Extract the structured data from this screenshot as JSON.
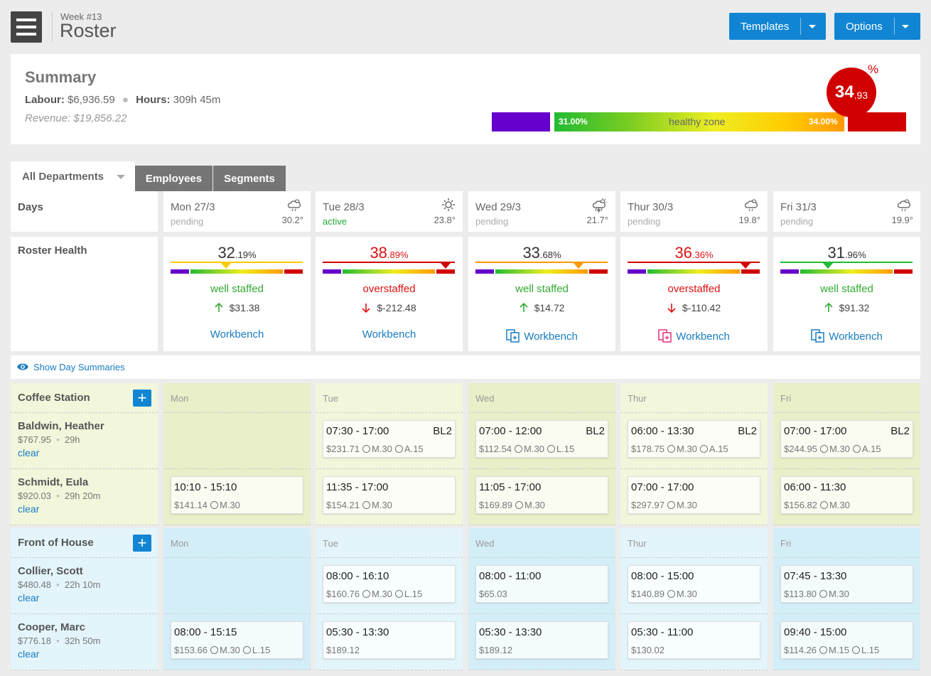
{
  "header": {
    "week": "Week #13",
    "title": "Roster",
    "templates_label": "Templates",
    "options_label": "Options"
  },
  "summary": {
    "title": "Summary",
    "labour_label": "Labour:",
    "labour_value": "$6,936.59",
    "hours_label": "Hours:",
    "hours_value": "309h 45m",
    "revenue": "Revenue: $19,856.22",
    "gauge_low": "31.00%",
    "gauge_zone": "healthy zone",
    "gauge_high": "34.00%",
    "pct_int": "34",
    "pct_dec": ".93",
    "pct_symbol": "%"
  },
  "tabs": {
    "department": "All Departments",
    "employees": "Employees",
    "segments": "Segments"
  },
  "days_label": "Days",
  "health_label": "Roster Health",
  "days": [
    {
      "name": "Mon 27/3",
      "status": "pending",
      "temp": "30.2°",
      "weather": "partly-cloudy-icon",
      "int": "32",
      "dec": ".19",
      "pct": "%",
      "state": "well staffed",
      "amount": "$31.38",
      "dir": "up",
      "color": "#ffcc00",
      "ptr_pos": 0.42,
      "workbench": "Workbench",
      "wb_icon": ""
    },
    {
      "name": "Tue 28/3",
      "status": "active",
      "temp": "23.8°",
      "weather": "sun-icon",
      "int": "38",
      "dec": ".89",
      "pct": "%",
      "state": "overstaffed",
      "amount": "$-212.48",
      "dir": "down",
      "color": "#d10000",
      "ptr_pos": 0.93,
      "workbench": "Workbench",
      "wb_icon": ""
    },
    {
      "name": "Wed 29/3",
      "status": "pending",
      "temp": "21.7°",
      "weather": "thunderstorm-icon",
      "int": "33",
      "dec": ".68",
      "pct": "%",
      "state": "well staffed",
      "amount": "$14.72",
      "dir": "up",
      "color": "#ff9900",
      "ptr_pos": 0.78,
      "workbench": "Workbench",
      "wb_icon": "blue"
    },
    {
      "name": "Thur 30/3",
      "status": "pending",
      "temp": "19.8°",
      "weather": "cloudy-rain-icon",
      "int": "36",
      "dec": ".36",
      "pct": "%",
      "state": "overstaffed",
      "amount": "$-110.42",
      "dir": "down",
      "color": "#d10000",
      "ptr_pos": 0.89,
      "workbench": "Workbench",
      "wb_icon": "pink"
    },
    {
      "name": "Fri 31/3",
      "status": "pending",
      "temp": "19.9°",
      "weather": "cloudy-rain-icon",
      "int": "31",
      "dec": ".96",
      "pct": "%",
      "state": "well staffed",
      "amount": "$91.32",
      "dir": "up",
      "color": "#22bb33",
      "ptr_pos": 0.36,
      "workbench": "Workbench",
      "wb_icon": "blue"
    }
  ],
  "show_day_summaries": "Show Day Summaries",
  "day_short": [
    "Mon",
    "Tue",
    "Wed",
    "Thur",
    "Fri"
  ],
  "sections": [
    {
      "name": "Coffee Station",
      "color": "#f2f7dc",
      "alt": "#e9efc8",
      "employees": [
        {
          "name": "Baldwin, Heather",
          "cost": "$767.95",
          "hours": "29h",
          "clear": "clear",
          "shifts": [
            null,
            {
              "time": "07:30 - 17:00",
              "tag": "BL2",
              "cost": "$231.71",
              "breaks": [
                "M.30",
                "A.15"
              ]
            },
            {
              "time": "07:00 - 12:00",
              "tag": "BL2",
              "cost": "$112.54",
              "breaks": [
                "M.30",
                "L.15"
              ]
            },
            {
              "time": "06:00 - 13:30",
              "tag": "BL2",
              "cost": "$178.75",
              "breaks": [
                "M.30",
                "A.15"
              ]
            },
            {
              "time": "07:00 - 17:00",
              "tag": "BL2",
              "cost": "$244.95",
              "breaks": [
                "M.30",
                "A.15"
              ]
            }
          ]
        },
        {
          "name": "Schmidt, Eula",
          "cost": "$920.03",
          "hours": "29h 20m",
          "clear": "clear",
          "shifts": [
            {
              "time": "10:10 - 15:10",
              "tag": "",
              "cost": "$141.14",
              "breaks": [
                "M.30"
              ]
            },
            {
              "time": "11:35 - 17:00",
              "tag": "",
              "cost": "$154.21",
              "breaks": [
                "M.30"
              ]
            },
            {
              "time": "11:05 - 17:00",
              "tag": "",
              "cost": "$169.89",
              "breaks": [
                "M.30"
              ]
            },
            {
              "time": "07:00 - 17:00",
              "tag": "",
              "cost": "$297.97",
              "breaks": [
                "M.30"
              ]
            },
            {
              "time": "06:00 - 11:30",
              "tag": "",
              "cost": "$156.82",
              "breaks": [
                "M.30"
              ]
            }
          ]
        }
      ]
    },
    {
      "name": "Front of House",
      "color": "#e3f5fb",
      "alt": "#d4eef8",
      "employees": [
        {
          "name": "Collier, Scott",
          "cost": "$480.48",
          "hours": "22h 10m",
          "clear": "clear",
          "shifts": [
            null,
            {
              "time": "08:00 - 16:10",
              "tag": "",
              "cost": "$160.76",
              "breaks": [
                "M.30",
                "L.15"
              ]
            },
            {
              "time": "08:00 - 11:00",
              "tag": "",
              "cost": "$65.03",
              "breaks": []
            },
            {
              "time": "08:00 - 15:00",
              "tag": "",
              "cost": "$140.89",
              "breaks": [
                "M.30"
              ]
            },
            {
              "time": "07:45 - 13:30",
              "tag": "",
              "cost": "$113.80",
              "breaks": [
                "M.30"
              ]
            }
          ]
        },
        {
          "name": "Cooper, Marc",
          "cost": "$776.18",
          "hours": "32h 50m",
          "clear": "clear",
          "shifts": [
            {
              "time": "08:00 - 15:15",
              "tag": "",
              "cost": "$153.66",
              "breaks": [
                "M.30",
                "L.15"
              ]
            },
            {
              "time": "05:30 - 13:30",
              "tag": "",
              "cost": "$189.12",
              "breaks": []
            },
            {
              "time": "05:30 - 13:30",
              "tag": "",
              "cost": "$189.12",
              "breaks": []
            },
            {
              "time": "05:30 - 11:00",
              "tag": "",
              "cost": "$130.02",
              "breaks": []
            },
            {
              "time": "09:40 - 15:00",
              "tag": "",
              "cost": "$114.26",
              "breaks": [
                "M.15",
                "L.15"
              ]
            }
          ]
        }
      ]
    }
  ]
}
